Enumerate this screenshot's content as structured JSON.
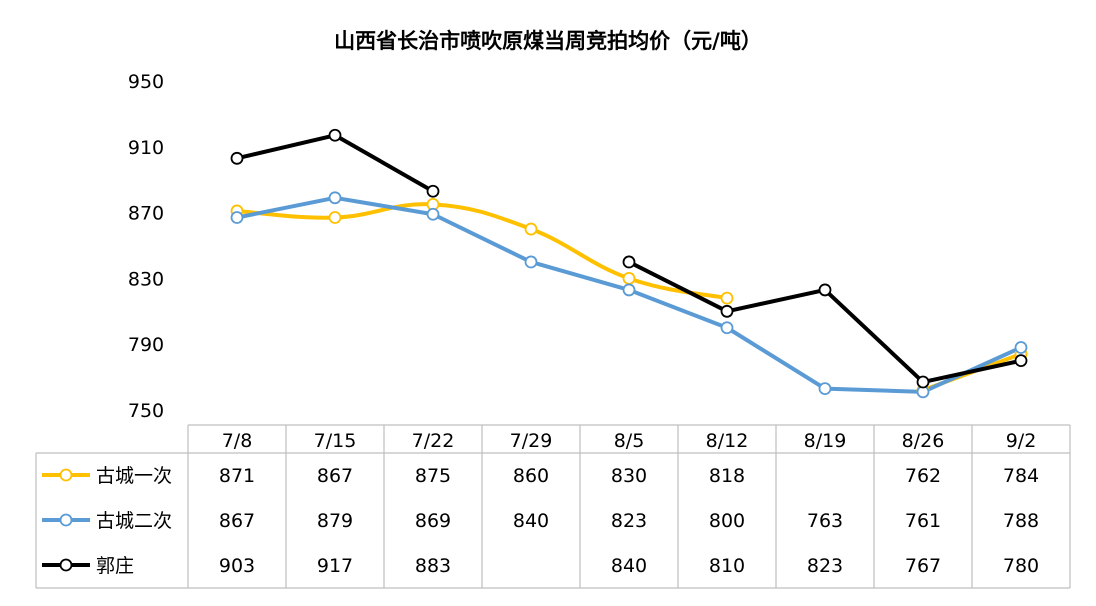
{
  "chart_data": {
    "type": "line",
    "title": "山西省长治市喷吹原煤当周竞拍均价（元/吨）",
    "categories": [
      "7/8",
      "7/15",
      "7/22",
      "7/29",
      "8/5",
      "8/12",
      "8/19",
      "8/26",
      "9/2"
    ],
    "ylim": [
      750,
      950
    ],
    "yticks": [
      "950",
      "910",
      "870",
      "830",
      "790",
      "750"
    ],
    "grid": false,
    "legend": "data-table-left",
    "series": [
      {
        "name": "古城一次",
        "color": "#ffc000",
        "smooth": true,
        "values": [
          871,
          867,
          875,
          860,
          830,
          818,
          null,
          762,
          784
        ],
        "labels": [
          "871",
          "867",
          "875",
          "860",
          "830",
          "818",
          "",
          "762",
          "784"
        ]
      },
      {
        "name": "古城二次",
        "color": "#5b9bd5",
        "smooth": false,
        "values": [
          867,
          879,
          869,
          840,
          823,
          800,
          763,
          761,
          788
        ],
        "labels": [
          "867",
          "879",
          "869",
          "840",
          "823",
          "800",
          "763",
          "761",
          "788"
        ]
      },
      {
        "name": "郭庄",
        "color": "#000000",
        "smooth": false,
        "values": [
          903,
          917,
          883,
          null,
          840,
          810,
          823,
          767,
          780
        ],
        "labels": [
          "903",
          "917",
          "883",
          "",
          "840",
          "810",
          "823",
          "767",
          "780"
        ]
      }
    ]
  }
}
